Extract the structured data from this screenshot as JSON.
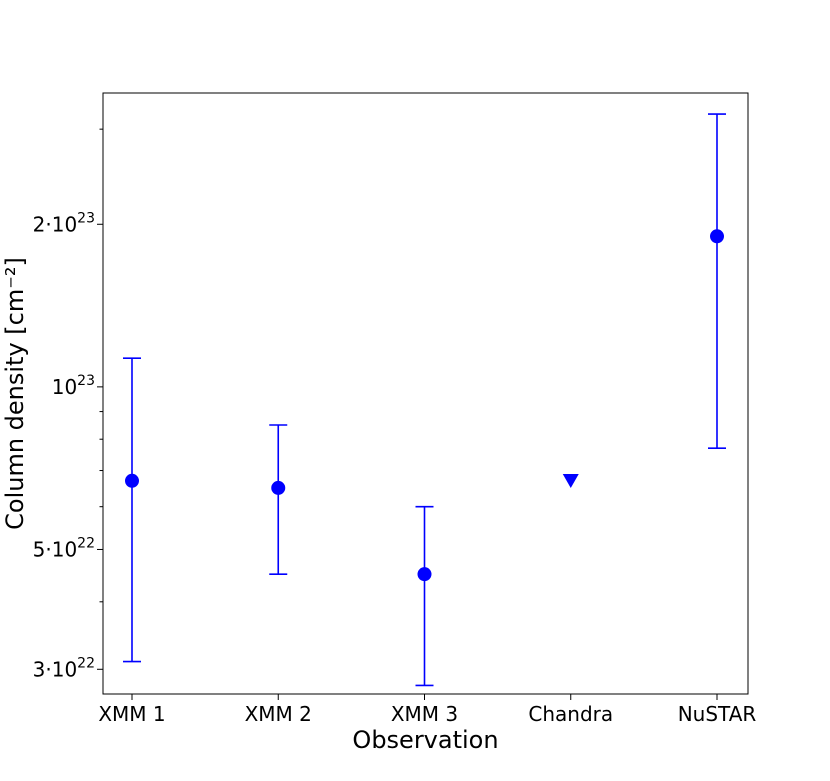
{
  "chart_data": {
    "type": "scatter",
    "title": "",
    "xlabel": "Observation",
    "ylabel": "Column density [cm⁻²]",
    "yscale": "log",
    "ylim": [
      2.7e+22,
      3.5e+23
    ],
    "grid": false,
    "legend": null,
    "marker_color": "#0000ff",
    "categories": [
      "XMM 1",
      "XMM 2",
      "XMM 3",
      "Chandra",
      "NuSTAR"
    ],
    "points": [
      {
        "category": "XMM 1",
        "value": 6.7e+22,
        "err_low": 3.1e+22,
        "err_high": 1.13e+23,
        "marker": "circle"
      },
      {
        "category": "XMM 2",
        "value": 6.5e+22,
        "err_low": 4.5e+22,
        "err_high": 8.5e+22,
        "marker": "circle"
      },
      {
        "category": "XMM 3",
        "value": 4.5e+22,
        "err_low": 2.8e+22,
        "err_high": 6e+22,
        "marker": "circle"
      },
      {
        "category": "Chandra",
        "value": 6.7e+22,
        "upper_limit": true,
        "marker": "triangle-down"
      },
      {
        "category": "NuSTAR",
        "value": 1.9e+23,
        "err_low": 7.7e+22,
        "err_high": 3.2e+23,
        "marker": "circle"
      }
    ],
    "yticks": [
      {
        "value": 3e+22,
        "mantissa": "3",
        "exponent": "22"
      },
      {
        "value": 5e+22,
        "mantissa": "5",
        "exponent": "22"
      },
      {
        "value": 1e+23,
        "mantissa": "",
        "exponent": "23"
      },
      {
        "value": 2e+23,
        "mantissa": "2",
        "exponent": "23"
      }
    ]
  }
}
